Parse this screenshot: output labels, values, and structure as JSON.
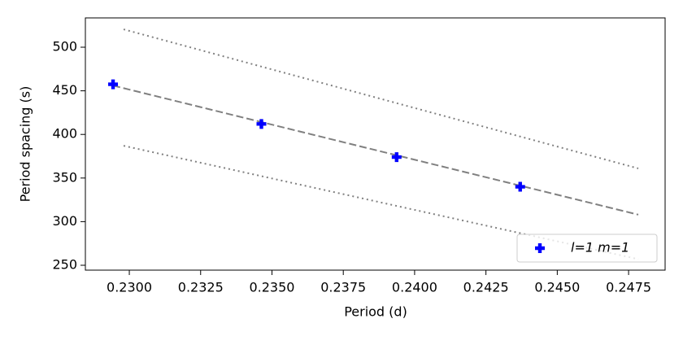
{
  "chart_data": {
    "type": "scatter",
    "xlabel": "Period (d)",
    "ylabel": "Period spacing (s)",
    "xlim": [
      0.22846,
      0.24878
    ],
    "ylim": [
      244.4,
      533.6
    ],
    "xticks": [
      {
        "value": 0.23,
        "label": "0.2300"
      },
      {
        "value": 0.2325,
        "label": "0.2325"
      },
      {
        "value": 0.235,
        "label": "0.2350"
      },
      {
        "value": 0.2375,
        "label": "0.2375"
      },
      {
        "value": 0.24,
        "label": "0.2400"
      },
      {
        "value": 0.2425,
        "label": "0.2425"
      },
      {
        "value": 0.245,
        "label": "0.2450"
      },
      {
        "value": 0.2475,
        "label": "0.2475"
      }
    ],
    "yticks": [
      250,
      300,
      350,
      400,
      450,
      500
    ],
    "series": [
      {
        "name": "l=1 m=1",
        "color": "#0000ff",
        "x": [
          0.22943,
          0.23463,
          0.23937,
          0.2437
        ],
        "values": [
          457.5,
          412,
          374,
          340
        ]
      }
    ],
    "lines": [
      {
        "color": "#808080",
        "style": "dashed",
        "x": [
          0.22943,
          0.24784
        ],
        "values": [
          456,
          308
        ]
      },
      {
        "color": "#808080",
        "style": "dotted",
        "x": [
          0.2298,
          0.24784
        ],
        "values": [
          520.5,
          361
        ]
      },
      {
        "color": "#808080",
        "style": "dotted",
        "x": [
          0.2298,
          0.24784
        ],
        "values": [
          387,
          257
        ]
      }
    ],
    "legend": "lower right"
  }
}
